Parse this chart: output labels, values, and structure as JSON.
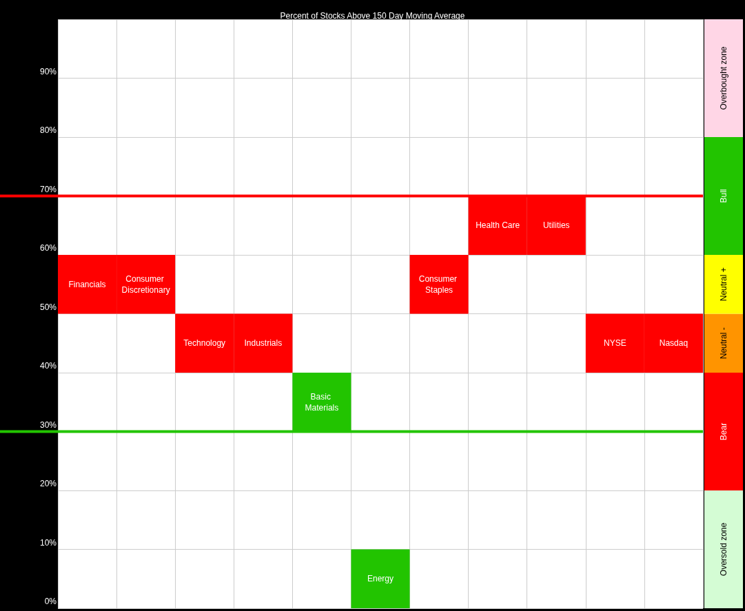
{
  "chart_data": [
    {
      "type": "bar",
      "title": "Percent of Stocks Above 150 Day Moving Average",
      "categories": [
        "Financials",
        "Consumer Discretionary",
        "Technology",
        "Industrials",
        "Basic Materials",
        "Energy",
        "Consumer Staples",
        "Health Care",
        "Utilities",
        "NYSE",
        "Nasdaq"
      ],
      "base": [
        50,
        50,
        40,
        40,
        30,
        0,
        50,
        60,
        60,
        40,
        40
      ],
      "values": [
        10,
        10,
        10,
        10,
        10,
        10,
        10,
        10,
        10,
        10,
        10
      ],
      "colors": [
        "#ff0000",
        "#ff0000",
        "#ff0000",
        "#ff0000",
        "#22c400",
        "#22c400",
        "#ff0000",
        "#ff0000",
        "#ff0000",
        "#ff0000",
        "#ff0000"
      ],
      "ylim": [
        0,
        100
      ],
      "yticks": [
        {
          "value": 0,
          "label": "0%"
        },
        {
          "value": 10,
          "label": "10%"
        },
        {
          "value": 20,
          "label": "20%"
        },
        {
          "value": 30,
          "label": "30%"
        },
        {
          "value": 40,
          "label": "40%"
        },
        {
          "value": 50,
          "label": "50%"
        },
        {
          "value": 60,
          "label": "60%"
        },
        {
          "value": 70,
          "label": "70%"
        },
        {
          "value": 80,
          "label": "80%"
        },
        {
          "value": 90,
          "label": "90%"
        }
      ],
      "grid": true,
      "tick_labels": "y",
      "ref_lines": [
        {
          "axis": "y",
          "value": 70,
          "color": "#ff0000"
        },
        {
          "axis": "y",
          "value": 30,
          "color": "#22c400"
        }
      ]
    },
    {
      "type": "bar",
      "stacked": true,
      "categories": [
        null
      ],
      "series": [
        {
          "name": "Oversold zone",
          "color": "#d4fcd4",
          "values": [
            20
          ]
        },
        {
          "name": "Bear",
          "color": "#ff0000",
          "values": [
            20
          ]
        },
        {
          "name": "Neutral -",
          "color": "#ff9400",
          "values": [
            10
          ]
        },
        {
          "name": "Neutral +",
          "color": "#ffff00",
          "values": [
            10
          ]
        },
        {
          "name": "Bull",
          "color": "#22c400",
          "values": [
            20
          ]
        },
        {
          "name": "Overbought zone",
          "color": "#ffd6e6",
          "values": [
            20
          ]
        }
      ],
      "ylim": [
        0,
        100
      ],
      "tick_labels": false
    }
  ]
}
